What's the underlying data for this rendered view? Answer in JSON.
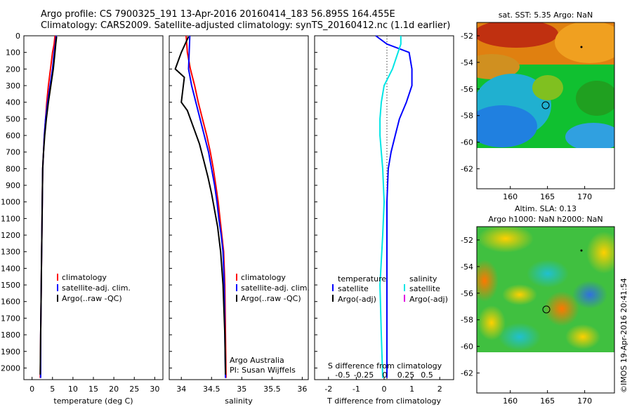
{
  "header": {
    "line1": "Argo profile: CS 7900325_191 13-Apr-2016 20160414_183 56.895S 164.455E",
    "line2": "Climatology: CARS2009. Satellite-adjusted climatology: synTS_20160412.nc (1.1d earlier)"
  },
  "watermark": "©IMOS 19-Apr-2016 20:41:54",
  "colors": {
    "climatology": "#ff0000",
    "satellite": "#0000ff",
    "argo": "#000000",
    "cyan": "#00e5e5",
    "magenta": "#e000e0"
  },
  "chart_data": [
    {
      "type": "line",
      "xlabel": "temperature (deg C)",
      "ylabel": "",
      "xlim": [
        -2,
        32
      ],
      "ylim": [
        2070,
        0
      ],
      "xticks": [
        0,
        5,
        10,
        15,
        20,
        25,
        30
      ],
      "yticks": [
        0,
        100,
        200,
        300,
        400,
        500,
        600,
        700,
        800,
        900,
        1000,
        1100,
        1200,
        1300,
        1400,
        1500,
        1600,
        1700,
        1800,
        1900,
        2000
      ],
      "legend": [
        "climatology",
        "satellite-adj. clim.",
        "Argo(..raw -QC)"
      ],
      "series": [
        {
          "name": "climatology",
          "color": "#ff0000",
          "x": [
            5.6,
            5.4,
            5.0,
            4.5,
            4.0,
            3.6,
            3.3,
            3.0,
            2.8,
            2.6,
            2.5,
            2.4,
            2.3,
            2.2,
            2.1,
            2.0
          ],
          "y": [
            0,
            50,
            100,
            200,
            300,
            400,
            500,
            600,
            700,
            800,
            1000,
            1200,
            1400,
            1600,
            1800,
            2060
          ]
        },
        {
          "name": "satellite-adj. clim.",
          "color": "#0000ff",
          "x": [
            5.9,
            5.7,
            5.4,
            5.0,
            4.4,
            3.8,
            3.3,
            3.0,
            2.8,
            2.6,
            2.5,
            2.4,
            2.3,
            2.2,
            2.1,
            2.1
          ],
          "y": [
            0,
            50,
            100,
            200,
            300,
            400,
            500,
            600,
            700,
            800,
            1000,
            1200,
            1400,
            1600,
            1800,
            2060
          ]
        },
        {
          "name": "Argo(..raw -QC)",
          "color": "#000000",
          "x": [
            6.0,
            5.8,
            5.6,
            5.2,
            4.6,
            4.0,
            3.5,
            3.1,
            2.8,
            2.6,
            2.5,
            2.4,
            2.3,
            2.2,
            2.1,
            2.0
          ],
          "y": [
            5,
            50,
            100,
            200,
            300,
            400,
            500,
            600,
            700,
            800,
            1000,
            1200,
            1400,
            1600,
            1800,
            2040
          ]
        }
      ]
    },
    {
      "type": "line",
      "xlabel": "salinity",
      "xlim": [
        33.8,
        36.1
      ],
      "ylim": [
        2070,
        0
      ],
      "xticks": [
        34,
        34.5,
        35,
        35.5,
        36
      ],
      "legend": [
        "climatology",
        "satellite-adj. clim.",
        "Argo(..raw -QC)"
      ],
      "note": [
        "Argo Australia",
        "PI: Susan Wijffels"
      ],
      "series": [
        {
          "name": "climatology",
          "color": "#ff0000",
          "x": [
            34.08,
            34.1,
            34.15,
            34.22,
            34.28,
            34.35,
            34.42,
            34.48,
            34.53,
            34.57,
            34.61,
            34.64,
            34.67,
            34.7,
            34.72,
            34.73,
            34.74
          ],
          "y": [
            0,
            100,
            200,
            300,
            400,
            500,
            600,
            700,
            800,
            900,
            1000,
            1100,
            1200,
            1300,
            1500,
            1800,
            2060
          ]
        },
        {
          "name": "satellite-adj. clim.",
          "color": "#0000ff",
          "x": [
            34.14,
            34.13,
            34.12,
            34.17,
            34.24,
            34.31,
            34.38,
            34.45,
            34.5,
            34.55,
            34.59,
            34.62,
            34.66,
            34.69,
            34.71,
            34.72,
            34.73
          ],
          "y": [
            0,
            100,
            200,
            300,
            400,
            500,
            600,
            700,
            800,
            900,
            1000,
            1100,
            1200,
            1300,
            1500,
            1800,
            2060
          ]
        },
        {
          "name": "Argo(..raw -QC)",
          "color": "#000000",
          "x": [
            34.12,
            34.0,
            33.9,
            34.05,
            34.0,
            34.1,
            34.2,
            34.3,
            34.37,
            34.44,
            34.5,
            34.55,
            34.6,
            34.65,
            34.69,
            34.72,
            34.73
          ],
          "y": [
            5,
            100,
            200,
            250,
            400,
            450,
            550,
            650,
            750,
            850,
            950,
            1050,
            1150,
            1300,
            1500,
            1800,
            2040
          ]
        }
      ]
    },
    {
      "type": "line",
      "xlabel": "T difference from climatology",
      "xlabel_top": "S difference from climatology",
      "xlim": [
        -2.5,
        2.5
      ],
      "ylim": [
        2070,
        0
      ],
      "xticks": [
        -2,
        -1,
        0,
        1,
        2
      ],
      "xticks_top": [
        "-0.5",
        "-0.25",
        "0",
        "0.25",
        "0.5"
      ],
      "legend_left": {
        "title": "temperature",
        "items": [
          "satellite",
          "Argo(-adj)"
        ]
      },
      "legend_right": {
        "title": "salinity",
        "items": [
          "satellite",
          "Argo(-adj)"
        ]
      },
      "series": [
        {
          "name": "satellite",
          "color": "#0000ff",
          "x": [
            -0.3,
            0.1,
            0.9,
            1.0,
            1.0,
            0.8,
            0.55,
            0.4,
            0.25,
            0.15,
            0.1,
            0.1,
            0.1,
            0.1,
            0.1
          ],
          "y": [
            0,
            50,
            100,
            200,
            300,
            400,
            500,
            600,
            700,
            800,
            1000,
            1200,
            1500,
            1800,
            2060
          ]
        },
        {
          "name": "satellite",
          "color": "#00e5e5",
          "x": [
            0.6,
            0.6,
            0.5,
            0.3,
            0.0,
            -0.1,
            -0.15,
            -0.15,
            -0.1,
            -0.05,
            0.0,
            -0.05,
            -0.15,
            -0.1,
            -0.05
          ],
          "y": [
            0,
            50,
            100,
            200,
            300,
            400,
            500,
            600,
            700,
            800,
            1000,
            1200,
            1500,
            1800,
            2060
          ]
        }
      ]
    },
    {
      "type": "heatmap",
      "title": "sat. SST: 5.35 Argo: NaN",
      "xticks": [
        160,
        165,
        170
      ],
      "yticks": [
        -52,
        -54,
        -56,
        -58,
        -60,
        -62
      ],
      "xlim": [
        155.5,
        174
      ],
      "ylim": [
        -63.5,
        -51
      ]
    },
    {
      "type": "heatmap",
      "title": "Altim. SLA: 0.13",
      "subtitle": "Argo h1000: NaN h2000: NaN",
      "xticks": [
        160,
        165,
        170
      ],
      "yticks": [
        -52,
        -54,
        -56,
        -58,
        -60,
        -62
      ],
      "xlim": [
        155.5,
        174
      ],
      "ylim": [
        -63.5,
        -51
      ]
    }
  ]
}
